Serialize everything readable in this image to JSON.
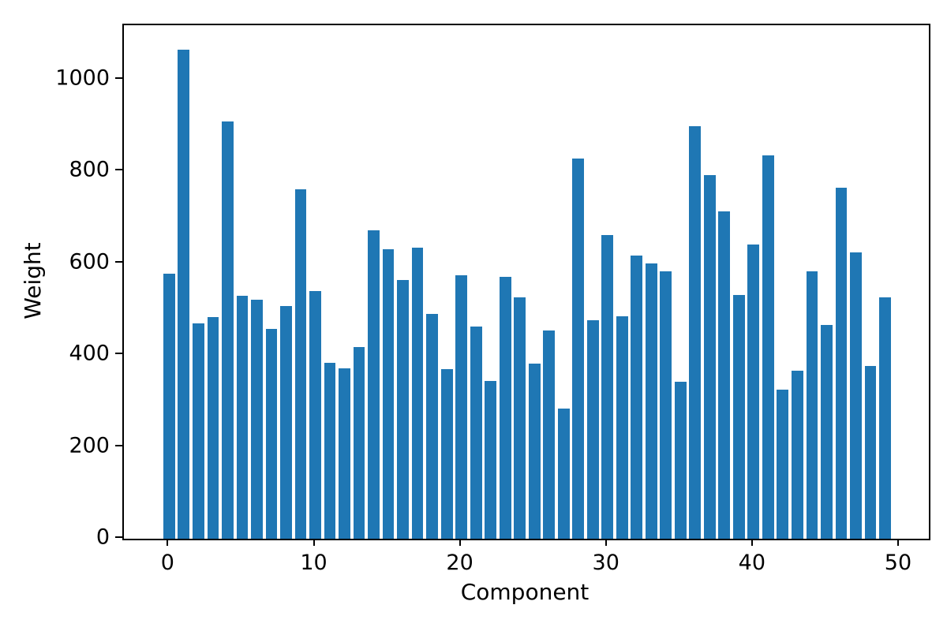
{
  "figure": {
    "background": "#ffffff",
    "spine_color": "#000000",
    "tick_color": "#000000",
    "text_color": "#000000"
  },
  "chart_data": {
    "type": "bar",
    "title": "",
    "xlabel": "Component",
    "ylabel": "Weight",
    "bar_color": "#1f77b4",
    "bar_width": 0.8,
    "grid": false,
    "legend": null,
    "xlim": [
      -3.1,
      52.0
    ],
    "ylim": [
      0,
      1118
    ],
    "xticks": [
      0,
      10,
      20,
      30,
      40,
      50
    ],
    "yticks": [
      0,
      200,
      400,
      600,
      800,
      1000
    ],
    "x": [
      0,
      1,
      2,
      3,
      4,
      5,
      6,
      7,
      8,
      9,
      10,
      11,
      12,
      13,
      14,
      15,
      16,
      17,
      18,
      19,
      20,
      21,
      22,
      23,
      24,
      25,
      26,
      27,
      28,
      29,
      30,
      31,
      32,
      33,
      34,
      35,
      36,
      37,
      38,
      39,
      40,
      41,
      42,
      43,
      44,
      45,
      46,
      47,
      48,
      49
    ],
    "values": [
      577,
      1065,
      469,
      483,
      909,
      529,
      521,
      456,
      507,
      760,
      539,
      383,
      371,
      418,
      672,
      630,
      563,
      633,
      490,
      369,
      573,
      462,
      344,
      570,
      526,
      381,
      453,
      284,
      828,
      476,
      662,
      485,
      616,
      600,
      582,
      341,
      898,
      792,
      712,
      531,
      640,
      834,
      324,
      365,
      583,
      466,
      765,
      623,
      376,
      525
    ]
  }
}
